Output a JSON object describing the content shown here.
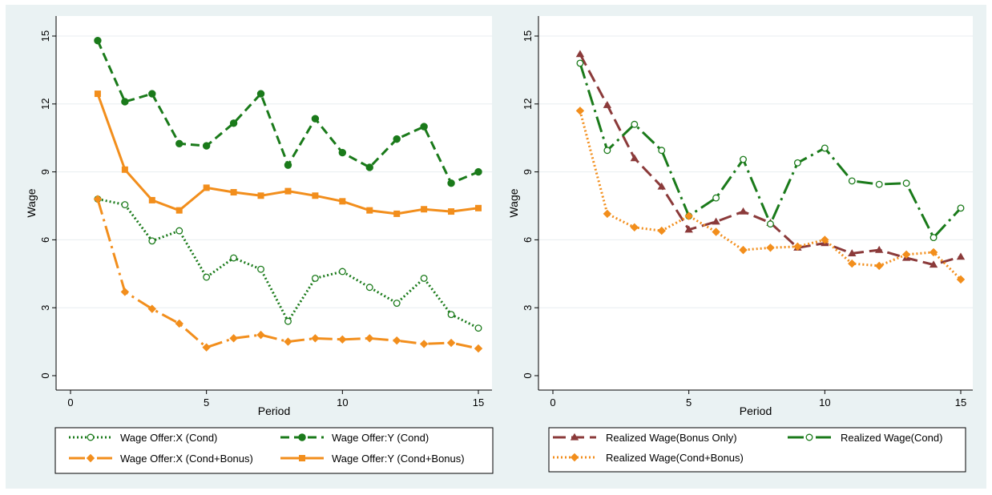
{
  "colors": {
    "background": "#eaf2f3",
    "plot_bg": "#ffffff",
    "grid": "#e8eef0",
    "green": "#1a7a1a",
    "orange": "#f28e1c",
    "maroon": "#8b3a3a"
  },
  "chart_data": [
    {
      "type": "line",
      "xlabel": "Period",
      "ylabel": "Wage",
      "xlim": [
        0,
        15
      ],
      "ylim": [
        0,
        15
      ],
      "xticks": [
        "0",
        "5",
        "10",
        "15"
      ],
      "yticks": [
        "0",
        "3",
        "6",
        "9",
        "12",
        "15"
      ],
      "grid": true,
      "legend_position": "bottom",
      "x": [
        1,
        2,
        3,
        4,
        5,
        6,
        7,
        8,
        9,
        10,
        11,
        12,
        13,
        14,
        15
      ],
      "series": [
        {
          "name": "Wage Offer:X (Cond)",
          "color": "green",
          "dash": "dot",
          "marker": "hollow-circle",
          "values": [
            7.8,
            7.55,
            5.95,
            6.4,
            4.35,
            5.2,
            4.7,
            2.4,
            4.3,
            4.6,
            3.9,
            3.2,
            4.3,
            2.7,
            2.1
          ]
        },
        {
          "name": "Wage Offer:Y (Cond)",
          "color": "green",
          "dash": "dash",
          "marker": "filled-circle",
          "values": [
            14.8,
            12.1,
            12.45,
            10.25,
            10.15,
            11.15,
            12.45,
            9.3,
            11.35,
            9.85,
            9.2,
            10.45,
            11.0,
            8.5,
            9.0
          ]
        },
        {
          "name": "Wage Offer:X (Cond+Bonus)",
          "color": "orange",
          "dash": "longdash-dot",
          "marker": "filled-diamond",
          "values": [
            7.8,
            3.7,
            2.95,
            2.3,
            1.25,
            1.65,
            1.8,
            1.5,
            1.65,
            1.6,
            1.65,
            1.55,
            1.4,
            1.45,
            1.2
          ]
        },
        {
          "name": "Wage Offer:Y (Cond+Bonus)",
          "color": "orange",
          "dash": "solid",
          "marker": "filled-square",
          "values": [
            12.45,
            9.1,
            7.75,
            7.3,
            8.3,
            8.1,
            7.95,
            8.15,
            7.95,
            7.7,
            7.3,
            7.15,
            7.35,
            7.25,
            7.4
          ]
        }
      ]
    },
    {
      "type": "line",
      "xlabel": "Period",
      "ylabel": "Wage",
      "xlim": [
        0,
        15
      ],
      "ylim": [
        0,
        15
      ],
      "xticks": [
        "0",
        "5",
        "10",
        "15"
      ],
      "yticks": [
        "0",
        "3",
        "6",
        "9",
        "12",
        "15"
      ],
      "grid": true,
      "legend_position": "bottom",
      "x": [
        1,
        2,
        3,
        4,
        5,
        6,
        7,
        8,
        9,
        10,
        11,
        12,
        13,
        14,
        15
      ],
      "series": [
        {
          "name": "Realized Wage(Bonus Only)",
          "color": "maroon",
          "dash": "longdash",
          "marker": "filled-triangle",
          "values": [
            14.2,
            11.95,
            9.6,
            8.35,
            6.45,
            6.8,
            7.25,
            6.75,
            5.65,
            5.85,
            5.4,
            5.55,
            5.2,
            4.9,
            5.25
          ]
        },
        {
          "name": "Realized Wage(Cond)",
          "color": "green",
          "dash": "longdash-dot",
          "marker": "hollow-circle",
          "values": [
            13.8,
            9.95,
            11.1,
            9.95,
            7.05,
            7.85,
            9.55,
            6.7,
            9.4,
            10.05,
            8.6,
            8.45,
            8.5,
            6.1,
            7.4
          ]
        },
        {
          "name": "Realized Wage(Cond+Bonus)",
          "color": "orange",
          "dash": "dot",
          "marker": "filled-diamond",
          "values": [
            11.7,
            7.15,
            6.55,
            6.4,
            7.05,
            6.35,
            5.55,
            5.65,
            5.7,
            6.0,
            4.95,
            4.85,
            5.35,
            5.45,
            4.25
          ]
        }
      ]
    }
  ]
}
